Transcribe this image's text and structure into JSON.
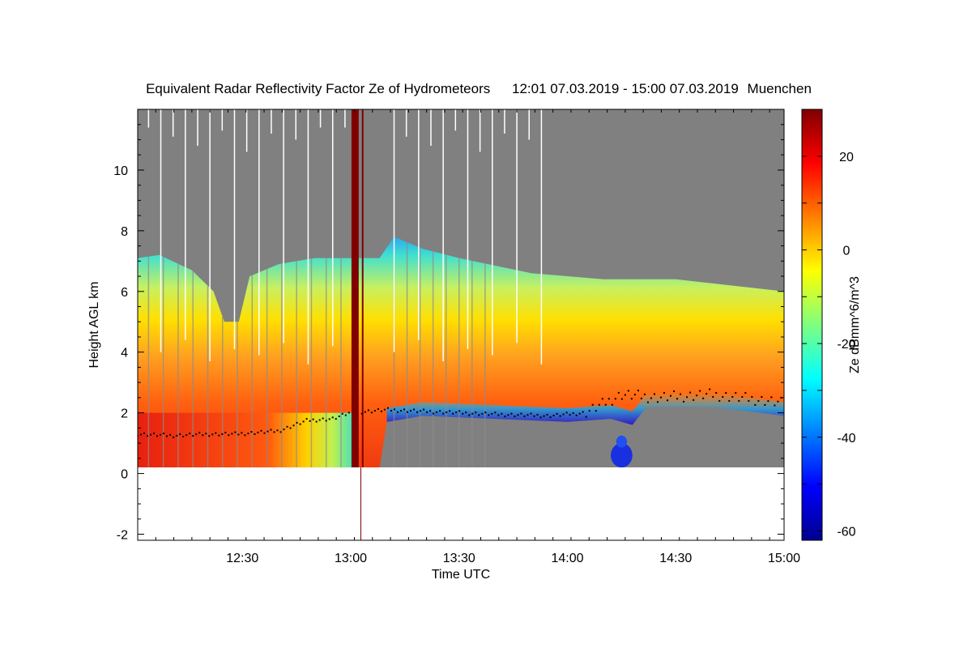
{
  "chart_data": {
    "type": "heatmap",
    "title": "Equivalent Radar Reflectivity Factor Ze of Hydrometeors",
    "period": "12:01 07.03.2019 - 15:00 07.03.2019",
    "location": "Muenchen",
    "xlabel": "Time UTC",
    "ylabel": "Height AGL km",
    "colorbar_label": "Ze dBmm^6/m^3",
    "x_start_min": 721,
    "x_end_min": 900,
    "xticks": [
      {
        "min": 750,
        "label": "12:30"
      },
      {
        "min": 780,
        "label": "13:00"
      },
      {
        "min": 810,
        "label": "13:30"
      },
      {
        "min": 840,
        "label": "14:00"
      },
      {
        "min": 870,
        "label": "14:30"
      },
      {
        "min": 900,
        "label": "15:00"
      }
    ],
    "ylim": [
      -2.2,
      12
    ],
    "yticks": [
      {
        "v": -2,
        "label": "-2"
      },
      {
        "v": 0,
        "label": "0"
      },
      {
        "v": 2,
        "label": "2"
      },
      {
        "v": 4,
        "label": "4"
      },
      {
        "v": 6,
        "label": "6"
      },
      {
        "v": 8,
        "label": "8"
      },
      {
        "v": 10,
        "label": "10"
      }
    ],
    "clim": [
      -62,
      30
    ],
    "cticks": [
      {
        "v": 20,
        "label": "20"
      },
      {
        "v": 0,
        "label": "0"
      },
      {
        "v": -20,
        "label": "-20"
      },
      {
        "v": -40,
        "label": "-40"
      },
      {
        "v": -60,
        "label": "-60"
      }
    ],
    "echo_top_km": [
      {
        "t": 721,
        "h": 7.1
      },
      {
        "t": 727,
        "h": 7.2
      },
      {
        "t": 736,
        "h": 6.7
      },
      {
        "t": 742,
        "h": 6.0
      },
      {
        "t": 745,
        "h": 5.0
      },
      {
        "t": 749,
        "h": 5.0
      },
      {
        "t": 752,
        "h": 6.5
      },
      {
        "t": 760,
        "h": 6.9
      },
      {
        "t": 770,
        "h": 7.1
      },
      {
        "t": 788,
        "h": 7.1
      },
      {
        "t": 792,
        "h": 7.8
      },
      {
        "t": 800,
        "h": 7.4
      },
      {
        "t": 810,
        "h": 7.1
      },
      {
        "t": 830,
        "h": 6.6
      },
      {
        "t": 850,
        "h": 6.4
      },
      {
        "t": 870,
        "h": 6.4
      },
      {
        "t": 900,
        "h": 6.0
      }
    ],
    "cloud_base_km": [
      {
        "t": 721,
        "h": 0.2
      },
      {
        "t": 780,
        "h": 0.2
      },
      {
        "t": 788,
        "h": 0.2
      },
      {
        "t": 790,
        "h": 1.7
      },
      {
        "t": 800,
        "h": 1.9
      },
      {
        "t": 820,
        "h": 1.8
      },
      {
        "t": 840,
        "h": 1.7
      },
      {
        "t": 852,
        "h": 1.8
      },
      {
        "t": 858,
        "h": 1.6
      },
      {
        "t": 862,
        "h": 2.2
      },
      {
        "t": 880,
        "h": 2.2
      },
      {
        "t": 900,
        "h": 1.9
      }
    ],
    "ceilometer_km": [
      {
        "t": 721,
        "h": 1.3
      },
      {
        "t": 730,
        "h": 1.25
      },
      {
        "t": 742,
        "h": 1.3
      },
      {
        "t": 748,
        "h": 1.3
      },
      {
        "t": 760,
        "h": 1.4
      },
      {
        "t": 768,
        "h": 1.75
      },
      {
        "t": 775,
        "h": 1.8
      },
      {
        "t": 780,
        "h": 2.0
      },
      {
        "t": 790,
        "h": 2.1
      },
      {
        "t": 800,
        "h": 2.05
      },
      {
        "t": 820,
        "h": 1.95
      },
      {
        "t": 835,
        "h": 1.9
      },
      {
        "t": 845,
        "h": 2.0
      },
      {
        "t": 855,
        "h": 2.6
      },
      {
        "t": 865,
        "h": 2.5
      },
      {
        "t": 880,
        "h": 2.6
      },
      {
        "t": 895,
        "h": 2.4
      },
      {
        "t": 900,
        "h": 2.3
      }
    ]
  }
}
